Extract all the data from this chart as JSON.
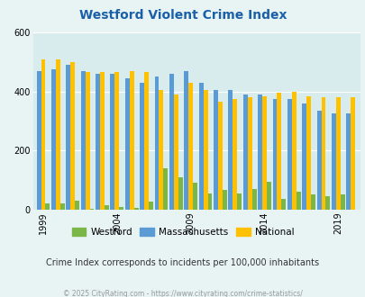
{
  "title": "Westford Violent Crime Index",
  "years": [
    1999,
    2000,
    2001,
    2002,
    2003,
    2004,
    2005,
    2006,
    2007,
    2008,
    2009,
    2010,
    2011,
    2012,
    2013,
    2014,
    2015,
    2016,
    2017,
    2018,
    2019,
    2020
  ],
  "westford": [
    20,
    20,
    30,
    2,
    15,
    8,
    5,
    25,
    140,
    110,
    90,
    55,
    65,
    55,
    70,
    95,
    35,
    60,
    50,
    45,
    50,
    0
  ],
  "massachusetts": [
    470,
    475,
    490,
    470,
    460,
    460,
    445,
    430,
    450,
    460,
    470,
    430,
    405,
    405,
    390,
    390,
    375,
    375,
    360,
    335,
    325,
    325
  ],
  "national": [
    510,
    510,
    500,
    465,
    465,
    465,
    470,
    465,
    405,
    390,
    430,
    405,
    365,
    375,
    380,
    385,
    395,
    400,
    385,
    380,
    380,
    380
  ],
  "westford_color": "#7ab648",
  "massachusetts_color": "#5b9bd5",
  "national_color": "#ffc000",
  "background_color": "#e8f4f4",
  "plot_bg": "#d9eced",
  "ylim": [
    0,
    600
  ],
  "yticks": [
    0,
    200,
    400,
    600
  ],
  "subtitle": "Crime Index corresponds to incidents per 100,000 inhabitants",
  "footer": "© 2025 CityRating.com - https://www.cityrating.com/crime-statistics/",
  "title_color": "#1a5fa8",
  "subtitle_color": "#333333",
  "footer_color": "#999999",
  "tick_years": [
    1999,
    2004,
    2009,
    2014,
    2019
  ]
}
